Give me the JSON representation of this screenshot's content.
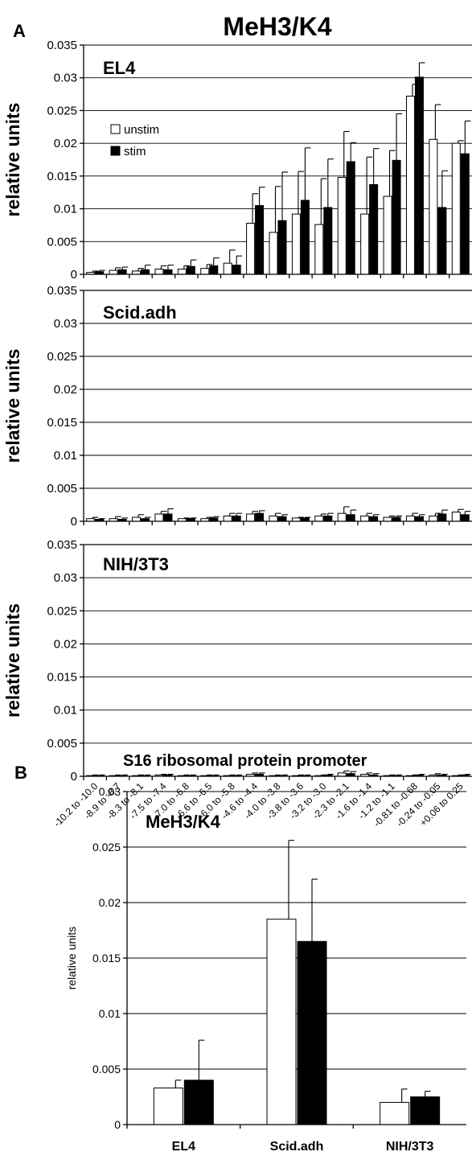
{
  "figure": {
    "panel_a_label": "A",
    "panel_b_label": "B",
    "title_a": "MeH3/K4",
    "title_b": "S16 ribosomal protein promoter"
  },
  "legend": {
    "unstim_label": "unstim",
    "stim_label": "stim"
  },
  "colors": {
    "unstim": "#ffffff",
    "stim": "#000000",
    "outline": "#000000"
  },
  "chart_data": [
    {
      "type": "bar",
      "panel": "A",
      "inset_label": "EL4",
      "ylabel": "relative units",
      "ylim": [
        0,
        0.035
      ],
      "yticks": [
        "0",
        "0.005",
        "0.01",
        "0.015",
        "0.02",
        "0.025",
        "0.03",
        "0.035"
      ],
      "grid": true,
      "legend_position": "upper-left",
      "categories": [
        "-10.2 to -10.0",
        "-8.9 to -8.7",
        "-8.3 to -8.1",
        "-7.5 to -7.4",
        "-7.0 to -6.8",
        "-6.6 to -6.5",
        "-6.0 to -5.8",
        "-4.6 to -4.4",
        "-4.0 to -3.8",
        "-3.8 to -3.6",
        "-3.2 to -3.0",
        "-2.3 to -2.1",
        "-1.6 to -1.4",
        "-1.2 to -1.1",
        "-0.81 to -0.68",
        "-0.24 to -0.05",
        "+0.06 to 0.25"
      ],
      "series": [
        {
          "name": "unstim",
          "values": [
            0.0003,
            0.0006,
            0.0005,
            0.0008,
            0.0008,
            0.0009,
            0.0017,
            0.0078,
            0.0064,
            0.0092,
            0.0076,
            0.0148,
            0.0092,
            0.0119,
            0.0272,
            0.0206,
            0.02
          ],
          "errors": [
            0.0002,
            0.0004,
            0.0004,
            0.0005,
            0.0005,
            0.0006,
            0.002,
            0.0045,
            0.007,
            0.0065,
            0.007,
            0.007,
            0.0087,
            0.007,
            0.0018,
            0.0053,
            0.0004
          ]
        },
        {
          "name": "stim",
          "values": [
            0.0004,
            0.0007,
            0.0007,
            0.0007,
            0.0012,
            0.0013,
            0.0014,
            0.0105,
            0.0082,
            0.0113,
            0.0102,
            0.0172,
            0.0137,
            0.0174,
            0.0301,
            0.0102,
            0.0184
          ],
          "errors": [
            0.0002,
            0.0004,
            0.0007,
            0.0007,
            0.001,
            0.0012,
            0.0014,
            0.0028,
            0.0074,
            0.008,
            0.0074,
            0.0029,
            0.0055,
            0.0071,
            0.0022,
            0.0056,
            0.005
          ]
        }
      ]
    },
    {
      "type": "bar",
      "panel": "A",
      "inset_label": "Scid.adh",
      "ylabel": "relative units",
      "ylim": [
        0,
        0.035
      ],
      "yticks": [
        "0",
        "0.005",
        "0.01",
        "0.015",
        "0.02",
        "0.025",
        "0.03",
        "0.035"
      ],
      "grid": true,
      "categories": [
        "-10.2 to -10.0",
        "-8.9 to -8.7",
        "-8.3 to -8.1",
        "-7.5 to -7.4",
        "-7.0 to -6.8",
        "-6.6 to -6.5",
        "-6.0 to -5.8",
        "-4.6 to -4.4",
        "-4.0 to -3.8",
        "-3.8 to -3.6",
        "-3.2 to -3.0",
        "-2.3 to -2.1",
        "-1.6 to -1.4",
        "-1.2 to -1.1",
        "-0.81 to -0.68",
        "-0.24 to -0.05",
        "+0.06 to 0.25"
      ],
      "series": [
        {
          "name": "unstim",
          "values": [
            0.0004,
            0.0004,
            0.0006,
            0.0011,
            0.0004,
            0.0004,
            0.0008,
            0.0011,
            0.0008,
            0.0005,
            0.0008,
            0.0012,
            0.0008,
            0.0006,
            0.0008,
            0.0008,
            0.0014
          ],
          "errors": [
            0.0002,
            0.0003,
            0.0004,
            0.0004,
            0.0001,
            0.0002,
            0.0004,
            0.0004,
            0.0004,
            0.0001,
            0.0003,
            0.001,
            0.0004,
            0.0002,
            0.0004,
            0.0004,
            0.0004
          ]
        },
        {
          "name": "stim",
          "values": [
            0.0003,
            0.0003,
            0.0004,
            0.0011,
            0.0004,
            0.0005,
            0.0008,
            0.0012,
            0.0007,
            0.0005,
            0.0008,
            0.001,
            0.0007,
            0.0006,
            0.0007,
            0.0011,
            0.001
          ],
          "errors": [
            0.0001,
            0.0002,
            0.0002,
            0.0008,
            0.0001,
            0.0002,
            0.0004,
            0.0004,
            0.0003,
            0.0001,
            0.0004,
            0.0007,
            0.0003,
            0.0002,
            0.0003,
            0.0006,
            0.0005
          ]
        }
      ]
    },
    {
      "type": "bar",
      "panel": "A",
      "inset_label": "NIH/3T3",
      "ylabel": "relative units",
      "ylim": [
        0,
        0.035
      ],
      "yticks": [
        "0",
        "0.005",
        "0.01",
        "0.015",
        "0.02",
        "0.025",
        "0.03",
        "0.035"
      ],
      "grid": true,
      "categories": [
        "-10.2 to -10.0",
        "-8.9 to -8.7",
        "-8.3 to -8.1",
        "-7.5 to -7.4",
        "-7.0 to -6.8",
        "-6.6 to -6.5",
        "-6.0 to -5.8",
        "-4.6 to -4.4",
        "-4.0 to -3.8",
        "-3.8 to -3.6",
        "-3.2 to -3.0",
        "-2.3 to -2.1",
        "-1.6 to -1.4",
        "-1.2 to -1.1",
        "-0.81 to -0.68",
        "-0.24 to -0.05",
        "+0.06 to 0.25"
      ],
      "series": [
        {
          "name": "unstim",
          "values": [
            0.0001,
            0.0001,
            0.0001,
            0.0002,
            0.0001,
            0.0001,
            0.0001,
            0.0003,
            0.0001,
            0.0001,
            0.0001,
            0.0005,
            0.0003,
            0.0001,
            0.0001,
            0.0002,
            0.0001
          ],
          "errors": [
            0.0001,
            0.0001,
            0.0001,
            0.0001,
            0.0001,
            0.0001,
            0.0001,
            0.0002,
            0.0001,
            0.0001,
            0.0001,
            0.0003,
            0.0002,
            0.0001,
            0.0001,
            0.0002,
            0.0001
          ]
        },
        {
          "name": "stim",
          "values": [
            0.0001,
            0.0001,
            0.0001,
            0.0002,
            0.0001,
            0.0001,
            0.0001,
            0.0003,
            0.0001,
            0.0001,
            0.0002,
            0.0004,
            0.0002,
            0.0001,
            0.0002,
            0.0002,
            0.0002
          ],
          "errors": [
            0.0001,
            0.0001,
            0.0001,
            0.0001,
            0.0001,
            0.0001,
            0.0001,
            0.0002,
            0.0001,
            0.0001,
            0.0001,
            0.0003,
            0.0002,
            0.0001,
            0.0001,
            0.0001,
            0.0001
          ]
        }
      ]
    },
    {
      "type": "bar",
      "panel": "B",
      "title": "S16 ribosomal protein promoter",
      "inset_label": "MeH3/K4",
      "ylabel": "relative units",
      "ylim": [
        0,
        0.03
      ],
      "yticks": [
        "0",
        "0.005",
        "0.01",
        "0.015",
        "0.02",
        "0.025",
        "0.03"
      ],
      "grid": true,
      "categories": [
        "EL4",
        "Scid.adh",
        "NIH/3T3"
      ],
      "series": [
        {
          "name": "unstim",
          "values": [
            0.0033,
            0.0185,
            0.002
          ],
          "errors": [
            0.0007,
            0.0071,
            0.0012
          ]
        },
        {
          "name": "stim",
          "values": [
            0.004,
            0.0165,
            0.0025
          ],
          "errors": [
            0.0036,
            0.0056,
            0.0005
          ]
        }
      ]
    }
  ]
}
